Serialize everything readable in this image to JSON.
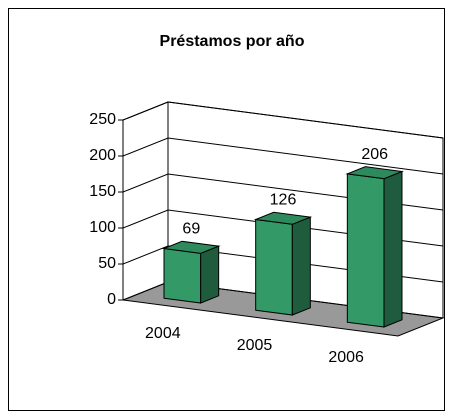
{
  "chart_data": {
    "type": "bar3d",
    "title": "Préstamos por año",
    "categories": [
      "2004",
      "2005",
      "2006"
    ],
    "values": [
      69,
      126,
      206
    ],
    "color": "#339966",
    "ylim": [
      0,
      250
    ],
    "yticks": [
      0,
      50,
      100,
      150,
      200,
      250
    ],
    "grid": true
  }
}
